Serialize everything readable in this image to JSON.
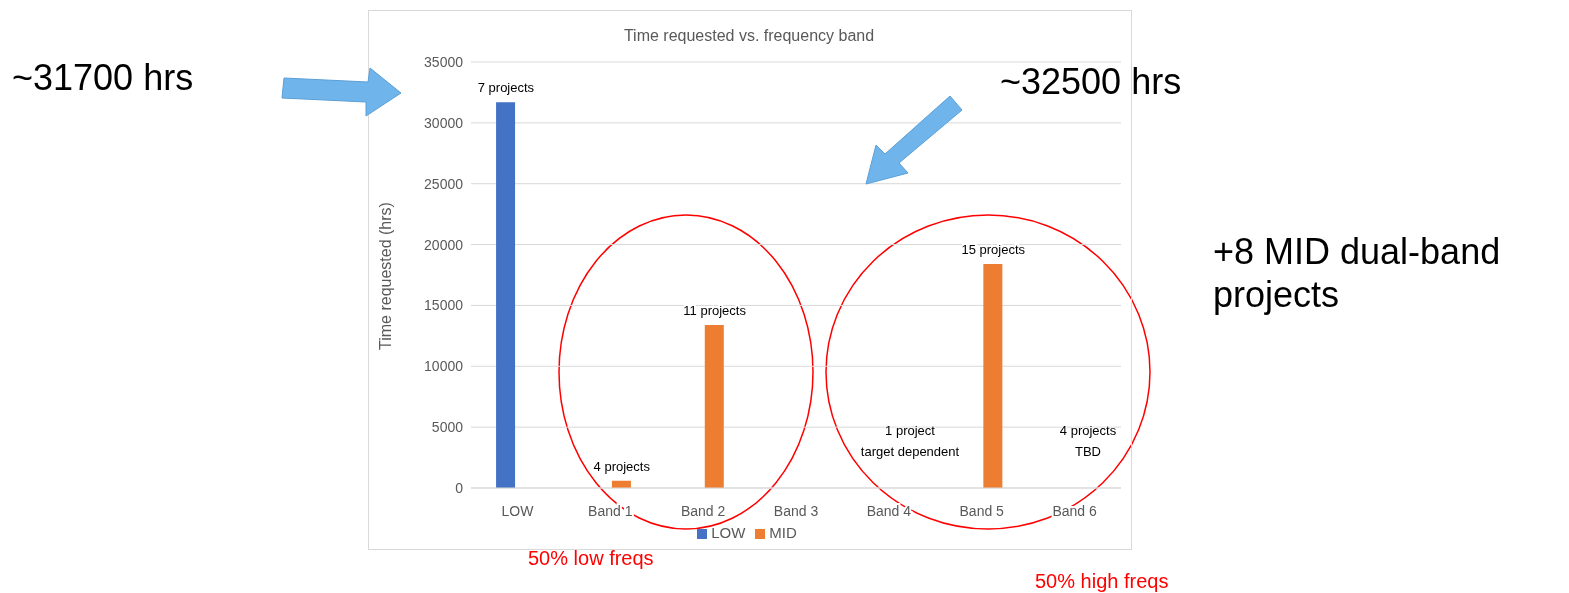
{
  "chart_data": {
    "type": "bar",
    "title": "Time requested vs. frequency band",
    "ylabel": "Time requested (hrs)",
    "categories": [
      "LOW",
      "Band 1",
      "Band 2",
      "Band 3",
      "Band 4",
      "Band 5",
      "Band 6"
    ],
    "series": [
      {
        "name": "LOW",
        "color": "#4472c4",
        "values": [
          31700,
          null,
          null,
          null,
          null,
          null,
          null
        ]
      },
      {
        "name": "MID",
        "color": "#ed7d31",
        "values": [
          null,
          600,
          13400,
          null,
          null,
          18400,
          null
        ]
      }
    ],
    "ylim": [
      0,
      35000
    ],
    "yticks": [
      0,
      5000,
      10000,
      15000,
      20000,
      25000,
      30000,
      35000
    ],
    "grid": "y",
    "legend": "bottom",
    "annotations": [
      "~31700 hrs",
      "~32500 hrs",
      "+8 MID dual-band projects",
      "50% low freqs",
      "50% high freqs",
      "1 project\ntarget dependent",
      "4 projects\nTBD",
      {
        "text": "7 projects",
        "x": "LOW",
        "y": 31700
      },
      {
        "text": "4 projects",
        "x": "Band 1",
        "y": 600
      },
      {
        "text": "11 projects",
        "x": "Band 2",
        "y": 13400
      },
      {
        "text": "15 projects",
        "x": "Band 5",
        "y": 18400
      }
    ]
  }
}
